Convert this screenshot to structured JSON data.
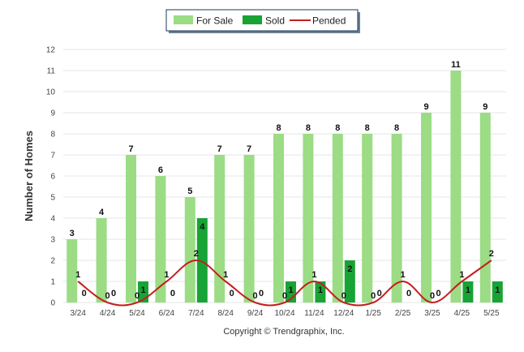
{
  "chart_data": {
    "type": "bar",
    "categories": [
      "3/24",
      "4/24",
      "5/24",
      "6/24",
      "7/24",
      "8/24",
      "9/24",
      "10/24",
      "11/24",
      "12/24",
      "1/25",
      "2/25",
      "3/25",
      "4/25",
      "5/25"
    ],
    "series": [
      {
        "name": "For Sale",
        "type": "bar",
        "color": "#9bdc85",
        "values": [
          3,
          4,
          7,
          6,
          5,
          7,
          7,
          8,
          8,
          8,
          8,
          8,
          9,
          11,
          9
        ]
      },
      {
        "name": "Sold",
        "type": "bar",
        "color": "#18a335",
        "values": [
          0,
          0,
          1,
          0,
          4,
          0,
          0,
          1,
          1,
          2,
          0,
          0,
          0,
          1,
          1
        ]
      },
      {
        "name": "Pended",
        "type": "line",
        "color": "#c41e1e",
        "values": [
          1,
          0,
          0,
          1,
          2,
          1,
          0,
          0,
          1,
          0,
          0,
          1,
          0,
          1,
          2
        ]
      }
    ],
    "ylabel": "Number of Homes",
    "xlabel": "",
    "ylim": [
      0,
      12
    ],
    "yticks": [
      0,
      1,
      2,
      3,
      4,
      5,
      6,
      7,
      8,
      9,
      10,
      11,
      12
    ],
    "grid": true,
    "legend_position": "top-center",
    "footer": "Copyright © Trendgraphix, Inc."
  }
}
